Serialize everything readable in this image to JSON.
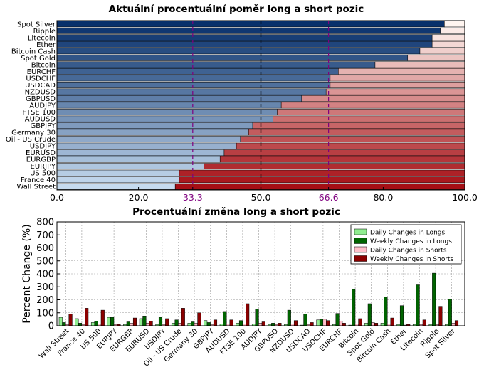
{
  "chart_data": [
    {
      "type": "bar",
      "orientation": "horizontal-stacked",
      "title": "Aktuální procentuální poměr long a short pozic",
      "categories": [
        "Spot Silver",
        "Ripple",
        "Litecoin",
        "Ether",
        "Bitcoin Cash",
        "Spot Gold",
        "Bitcoin",
        "EURCHF",
        "USDCHF",
        "USDCAD",
        "NZDUSD",
        "GBPUSD",
        "AUDJPY",
        "FTSE 100",
        "AUDUSD",
        "GBPJPY",
        "Germany 30",
        "Oil - US Crude",
        "USDJPY",
        "EURUSD",
        "EURGBP",
        "EURJPY",
        "US 500",
        "France 40",
        "Wall Street"
      ],
      "series": [
        {
          "values": [
            95,
            94,
            92,
            92,
            89,
            86,
            78,
            69,
            67,
            67,
            66,
            60,
            55,
            54,
            53,
            48,
            47,
            45,
            44,
            41,
            40,
            36,
            30,
            30,
            29
          ]
        },
        {
          "values": [
            5,
            6,
            8,
            8,
            11,
            14,
            22,
            31,
            33,
            33,
            34,
            40,
            45,
            46,
            47,
            52,
            53,
            55,
            56,
            59,
            60,
            64,
            70,
            70,
            71
          ]
        }
      ],
      "xlim": [
        0,
        100
      ],
      "xticks": [
        "0.0",
        "20.0",
        "33.3",
        "50.0",
        "66.6",
        "80.0",
        "100.0"
      ],
      "xtick_values": [
        0,
        20,
        33.3,
        50,
        66.6,
        80,
        100
      ],
      "reference_lines": [
        33.3,
        50,
        66.6
      ],
      "colors": {
        "long_dark": "#08306b",
        "long_light": "#c6dbef",
        "short_light": "#fff5f0",
        "short_dark": "#a50f15",
        "ref_magenta": "#7f007f"
      }
    },
    {
      "type": "bar",
      "title": "Procentuální změna long a short pozic",
      "ylabel": "Percent Change (%)",
      "ylim": [
        0,
        800
      ],
      "yticks": [
        0,
        100,
        200,
        300,
        400,
        500,
        600,
        700,
        800
      ],
      "grid": true,
      "legend": "top-right",
      "categories": [
        "Wall Street",
        "France 40",
        "US 500",
        "EURJPY",
        "EURGBP",
        "EURUSD",
        "USDJPY",
        "Oil - US Crude",
        "Germany 30",
        "GBPJPY",
        "AUDUSD",
        "FTSE 100",
        "AUDJPY",
        "GBPUSD",
        "NZDUSD",
        "USDCAD",
        "USDCHF",
        "EURCHF",
        "Bitcoin",
        "Spot Gold",
        "Bitcoin Cash",
        "Ether",
        "Litecoin",
        "Ripple",
        "Spot Silver"
      ],
      "series": [
        {
          "name": "Daily Changes in Longs",
          "color": "#90ee90",
          "values": [
            65,
            55,
            25,
            65,
            10,
            55,
            10,
            20,
            20,
            40,
            15,
            20,
            15,
            10,
            10,
            5,
            45,
            10,
            5,
            20,
            20,
            10,
            10,
            10,
            10
          ]
        },
        {
          "name": "Weekly Changes in Longs",
          "color": "#006400",
          "values": [
            25,
            20,
            35,
            65,
            30,
            75,
            65,
            45,
            30,
            25,
            110,
            40,
            130,
            20,
            120,
            90,
            50,
            95,
            280,
            170,
            220,
            155,
            315,
            405,
            205
          ]
        },
        {
          "name": "Daily Changes in Shorts",
          "color": "#ffc0cb",
          "values": [
            10,
            10,
            15,
            10,
            20,
            20,
            10,
            20,
            20,
            10,
            15,
            15,
            20,
            10,
            15,
            10,
            50,
            35,
            15,
            25,
            15,
            5,
            10,
            10,
            20
          ]
        },
        {
          "name": "Weekly Changes in Shorts",
          "color": "#8b0000",
          "values": [
            90,
            135,
            120,
            10,
            60,
            35,
            55,
            135,
            100,
            45,
            45,
            170,
            30,
            20,
            40,
            25,
            40,
            20,
            55,
            20,
            60,
            10,
            45,
            150,
            40
          ]
        }
      ]
    }
  ]
}
